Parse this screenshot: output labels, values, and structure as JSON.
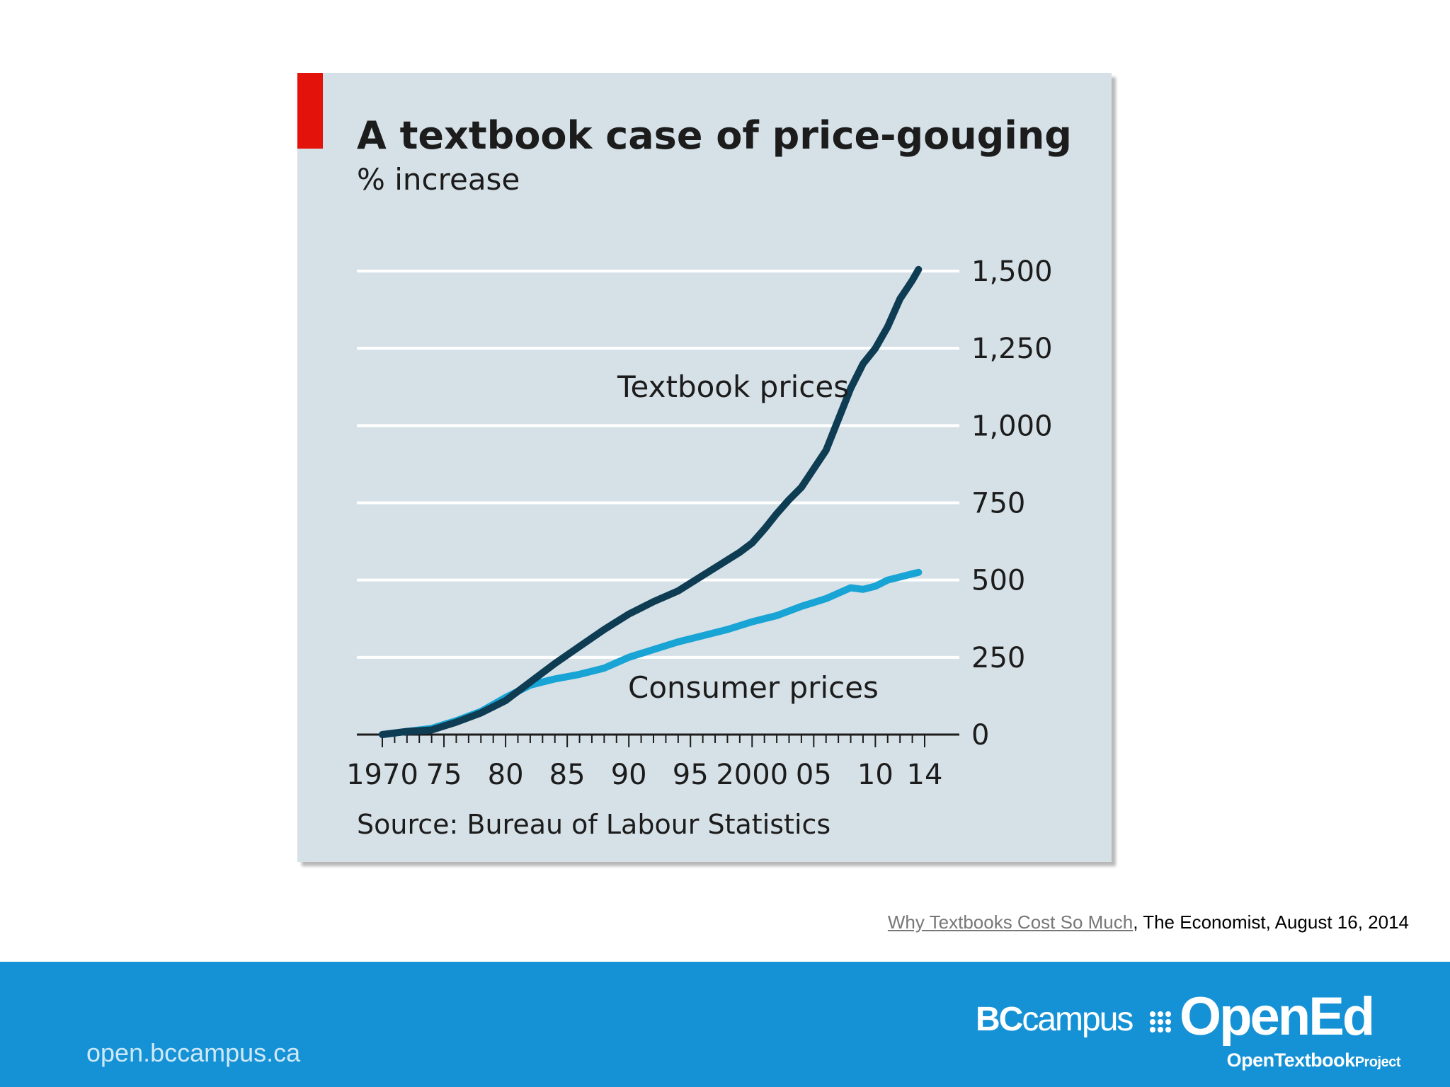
{
  "chart_data": {
    "type": "line",
    "title": "A textbook case of price-gouging",
    "subtitle": "% increase",
    "xlim": [
      1970,
      2014
    ],
    "ylim": [
      0,
      1500
    ],
    "y_ticks": [
      0,
      250,
      500,
      750,
      "1,000",
      "1,250",
      "1,500"
    ],
    "y_tick_values": [
      0,
      250,
      500,
      750,
      1000,
      1250,
      1500
    ],
    "y_tick_labels": [
      "0",
      "250",
      "500",
      "750",
      "1,000",
      "1,250",
      "1,500"
    ],
    "x_tick_values": [
      1970,
      1975,
      1980,
      1985,
      1990,
      1995,
      2000,
      2005,
      2010,
      2014
    ],
    "x_tick_labels": [
      "1970",
      "75",
      "80",
      "85",
      "90",
      "95",
      "2000",
      "05",
      "10",
      "14"
    ],
    "grid": "horizontal",
    "y_axis_side": "right",
    "series": [
      {
        "name": "Textbook prices",
        "color": "#0e3c53",
        "x": [
          1970,
          1972,
          1974,
          1976,
          1978,
          1980,
          1982,
          1984,
          1986,
          1988,
          1990,
          1991,
          1992,
          1994,
          1996,
          1998,
          1999,
          2000,
          2001,
          2002,
          2003,
          2004,
          2005,
          2006,
          2007,
          2008,
          2009,
          2010,
          2011,
          2012,
          2013,
          2013.5
        ],
        "y": [
          0,
          10,
          15,
          40,
          70,
          110,
          170,
          230,
          285,
          340,
          390,
          410,
          430,
          465,
          515,
          565,
          590,
          620,
          665,
          715,
          760,
          800,
          860,
          920,
          1020,
          1120,
          1200,
          1250,
          1320,
          1410,
          1470,
          1505
        ]
      },
      {
        "name": "Consumer prices",
        "color": "#18a4d4",
        "x": [
          1970,
          1972,
          1974,
          1976,
          1978,
          1980,
          1982,
          1984,
          1986,
          1988,
          1990,
          1992,
          1994,
          1996,
          1998,
          2000,
          2002,
          2004,
          2006,
          2008,
          2009,
          2010,
          2011,
          2012,
          2013,
          2013.5
        ],
        "y": [
          0,
          10,
          20,
          45,
          75,
          120,
          160,
          180,
          195,
          215,
          250,
          275,
          300,
          320,
          340,
          365,
          385,
          415,
          440,
          475,
          470,
          480,
          500,
          510,
          520,
          525
        ]
      }
    ],
    "annotations": [
      "Textbook prices",
      "Consumer prices"
    ],
    "source": "Source: Bureau of Labour Statistics"
  },
  "citation": {
    "link_text": "Why Textbooks Cost So Much",
    "rest": ", The Economist,  August 16, 2014"
  },
  "footer": {
    "url": "open.bccampus.ca",
    "logo_bc_bold": "BC",
    "logo_bc_thin": "campus",
    "logo_opened": "OpenEd",
    "logo_sub_main": "OpenTextbook",
    "logo_sub_small": "Project",
    "band_color": "#1592d5"
  }
}
